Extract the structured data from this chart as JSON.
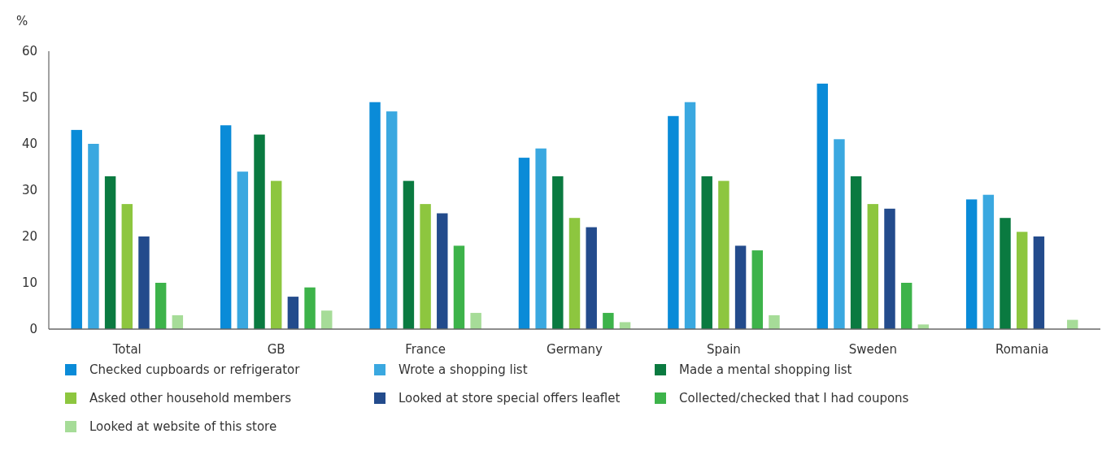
{
  "chart_data": {
    "type": "bar",
    "ylabel": "%",
    "categories": [
      "Total",
      "GB",
      "France",
      "Germany",
      "Spain",
      "Sweden",
      "Romania"
    ],
    "series": [
      {
        "name": "Checked cupboards or refrigerator",
        "color": "#0a8bd8",
        "values": [
          43,
          44,
          49,
          37,
          46,
          53,
          28
        ]
      },
      {
        "name": "Wrote a shopping list",
        "color": "#3aa8e0",
        "values": [
          40,
          34,
          47,
          39,
          49,
          41,
          29
        ]
      },
      {
        "name": "Made a mental shopping list",
        "color": "#0a7a40",
        "values": [
          33,
          42,
          32,
          33,
          33,
          33,
          24
        ]
      },
      {
        "name": "Asked other household members",
        "color": "#8dc63f",
        "values": [
          27,
          32,
          27,
          24,
          32,
          27,
          21
        ]
      },
      {
        "name": "Looked at store special offers leaflet",
        "color": "#234b8c",
        "values": [
          20,
          7,
          25,
          22,
          18,
          26,
          20
        ]
      },
      {
        "name": "Collected/checked that I had coupons",
        "color": "#3db34a",
        "values": [
          10,
          9,
          18,
          3.5,
          17,
          10,
          null
        ]
      },
      {
        "name": "Looked at website of this store",
        "color": "#a6dc98",
        "values": [
          3,
          4,
          3.5,
          1.5,
          3,
          1,
          2
        ]
      }
    ],
    "ylim": [
      0,
      60
    ],
    "yticks": [
      0,
      10,
      20,
      30,
      40,
      50,
      60
    ],
    "legend": "bottom"
  }
}
